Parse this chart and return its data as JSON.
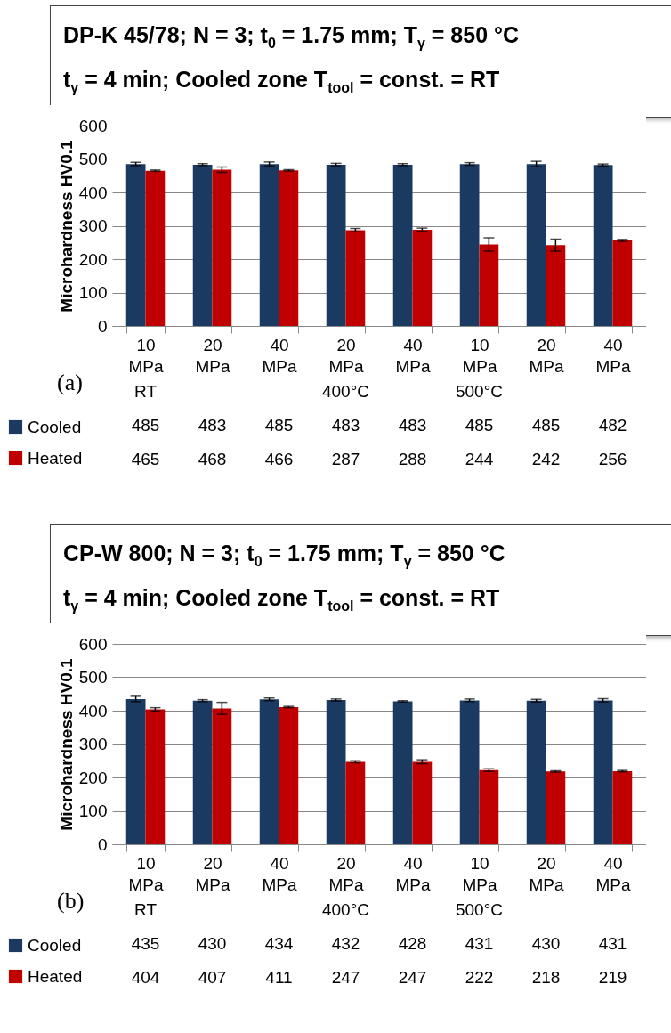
{
  "chart_data": [
    {
      "type": "bar",
      "title": "DP-K 45/78; N = 3; t$_{0}$ = 1.75 mm; T$_{γ}$ = 850 °C",
      "subtitle": "t$_{γ}$ = 4 min;  Cooled zone T$_{tool}$ = const. = RT",
      "ylabel": "Microhardness  HV0.1",
      "categories": [
        "10 MPa",
        "20 MPa",
        "40 MPa",
        "20 MPa",
        "40 MPa",
        "10 MPa",
        "20 MPa",
        "40 MPa"
      ],
      "series": [
        {
          "name": "Cooled",
          "color": "#1b3a62",
          "values": [
            485,
            483,
            485,
            483,
            483,
            485,
            485,
            482
          ],
          "errors": [
            5,
            3,
            6,
            4,
            3,
            4,
            8,
            3
          ]
        },
        {
          "name": "Heated",
          "color": "#c00000",
          "values": [
            465,
            468,
            466,
            287,
            288,
            244,
            242,
            256
          ],
          "errors": [
            2,
            8,
            2,
            5,
            5,
            20,
            18,
            3
          ]
        }
      ],
      "ylim": [
        0,
        600
      ],
      "yticks": [
        0,
        100,
        200,
        300,
        400,
        500,
        600
      ],
      "grid": "y",
      "legend": "bottom left",
      "data_labels": true,
      "annotations": [
        "RT",
        "400°C",
        "500°C",
        "(a)"
      ]
    },
    {
      "type": "bar",
      "title": "CP-W 800; N = 3; t$_{0}$ = 1.75 mm; T$_{γ}$ = 850 °C",
      "subtitle": "t$_{γ}$ = 4 min;  Cooled zone T$_{tool}$ = const. = RT",
      "ylabel": "Microhardness  HV0.1",
      "categories": [
        "10 MPa",
        "20 MPa",
        "40 MPa",
        "20 MPa",
        "40 MPa",
        "10 MPa",
        "20 MPa",
        "40 MPa"
      ],
      "series": [
        {
          "name": "Cooled",
          "color": "#1b3a62",
          "values": [
            435,
            430,
            434,
            432,
            428,
            431,
            430,
            431
          ],
          "errors": [
            8,
            3,
            4,
            3,
            2,
            4,
            4,
            5
          ]
        },
        {
          "name": "Heated",
          "color": "#c00000",
          "values": [
            404,
            407,
            411,
            247,
            247,
            222,
            218,
            219
          ],
          "errors": [
            5,
            18,
            2,
            3,
            6,
            4,
            2,
            2
          ]
        }
      ],
      "ylim": [
        0,
        600
      ],
      "yticks": [
        0,
        100,
        200,
        300,
        400,
        500,
        600
      ],
      "grid": "y",
      "legend": "bottom left",
      "data_labels": true,
      "annotations": [
        "RT",
        "400°C",
        "500°C",
        "(b)"
      ]
    }
  ]
}
